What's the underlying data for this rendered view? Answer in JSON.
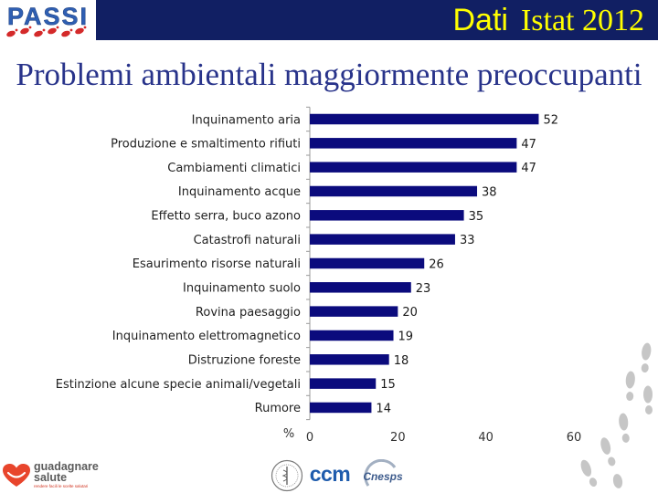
{
  "header": {
    "logo": {
      "text": "PASSI",
      "color": "#2f5fb3",
      "feet_color": "#d42a2a"
    },
    "source_label_sans": "Dati",
    "source_label_serif": "Istat 2012",
    "band_color": "#111f63",
    "text_color": "#ffff00"
  },
  "slide": {
    "title": "Problemi ambientali maggiormente preoccupanti",
    "title_color": "#28338a"
  },
  "chart_data": {
    "type": "bar",
    "categories": [
      "Inquinamento aria",
      "Produzione e smaltimento rifiuti",
      "Cambiamenti climatici",
      "Inquinamento acque",
      "Effetto serra, buco azono",
      "Catastrofi naturali",
      "Esaurimento risorse naturali",
      "Inquinamento suolo",
      "Rovina paesaggio",
      "Inquinamento elettromagnetico",
      "Distruzione foreste",
      "Estinzione alcune specie animali/vegetali",
      "Rumore"
    ],
    "values": [
      52,
      47,
      47,
      38,
      35,
      33,
      26,
      23,
      20,
      19,
      18,
      15,
      14
    ],
    "xlabel": "%",
    "xlim": [
      0,
      60
    ],
    "xticks": [
      0,
      20,
      40,
      60
    ],
    "grid": false,
    "bar_color": "#0b0b7d"
  },
  "footer": {
    "guadagnare_salute": {
      "line1": "guadagnare",
      "line2": "salute",
      "tagline": "rendere facili le scelte salutari",
      "icon": "heart-smile-icon",
      "icon_color": "#e8452c",
      "text_color": "#5b5b5b",
      "tagline_color": "#d0321e"
    },
    "seal": {
      "icon": "seal-icon"
    },
    "ccm": {
      "text": "ccm",
      "color": "#1f5cad"
    },
    "cnesps": {
      "text": "Cnesps",
      "color": "#3d5b8c",
      "ring_color": "#a3b0c2"
    }
  },
  "decorations": {
    "footprints_icon": "footprint-icon",
    "footprints_color": "#c6c6c6"
  }
}
